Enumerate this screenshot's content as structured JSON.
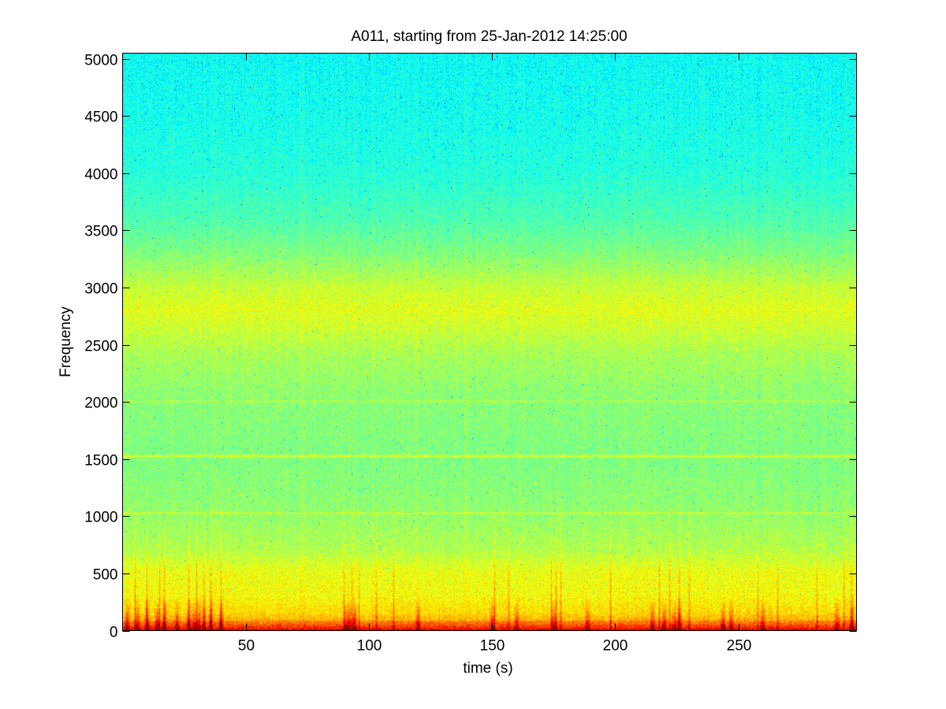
{
  "chart_data": {
    "type": "heatmap",
    "title": "A011, starting from 25-Jan-2012 14:25:00",
    "xlabel": "time (s)",
    "ylabel": "Frequency",
    "xlim": [
      0,
      298
    ],
    "ylim": [
      0,
      5050
    ],
    "x_ticks": [
      50,
      100,
      150,
      200,
      250
    ],
    "y_ticks": [
      0,
      500,
      1000,
      1500,
      2000,
      2500,
      3000,
      3500,
      4000,
      4500,
      5000
    ],
    "grid": false,
    "legend": "none",
    "colormap": "jet",
    "colormap_stops": [
      "#00007f",
      "#0000ff",
      "#00ffff",
      "#7fff7f",
      "#ffff00",
      "#ff0000",
      "#7f0000"
    ],
    "intensity_profile": {
      "frequency": [
        0,
        20,
        60,
        150,
        300,
        500,
        700,
        1000,
        1500,
        2000,
        2400,
        2600,
        2800,
        3000,
        3300,
        3600,
        4000,
        4500,
        5050
      ],
      "level": [
        0.86,
        0.8,
        0.72,
        0.66,
        0.62,
        0.61,
        0.55,
        0.52,
        0.5,
        0.51,
        0.54,
        0.57,
        0.6,
        0.57,
        0.5,
        0.45,
        0.41,
        0.39,
        0.38
      ]
    },
    "horizontal_bands": [
      {
        "frequency": 1020,
        "level": 0.57
      },
      {
        "frequency": 1520,
        "level": 0.58
      },
      {
        "frequency": 2000,
        "level": 0.55
      }
    ],
    "transient_events_s": [
      5,
      10,
      15,
      17,
      27,
      30,
      33,
      36,
      40,
      90,
      93,
      96,
      103,
      110,
      151,
      157,
      174,
      176,
      178,
      198,
      218,
      222,
      226,
      230,
      258,
      266,
      282,
      293,
      296
    ],
    "low_frequency_peak_times_s": [
      2,
      6,
      10,
      14,
      17,
      22,
      27,
      29,
      31,
      33,
      36,
      40,
      91,
      92,
      94,
      120,
      150,
      160,
      175,
      189,
      215,
      220,
      224,
      226,
      244,
      247,
      260,
      290,
      296
    ]
  }
}
